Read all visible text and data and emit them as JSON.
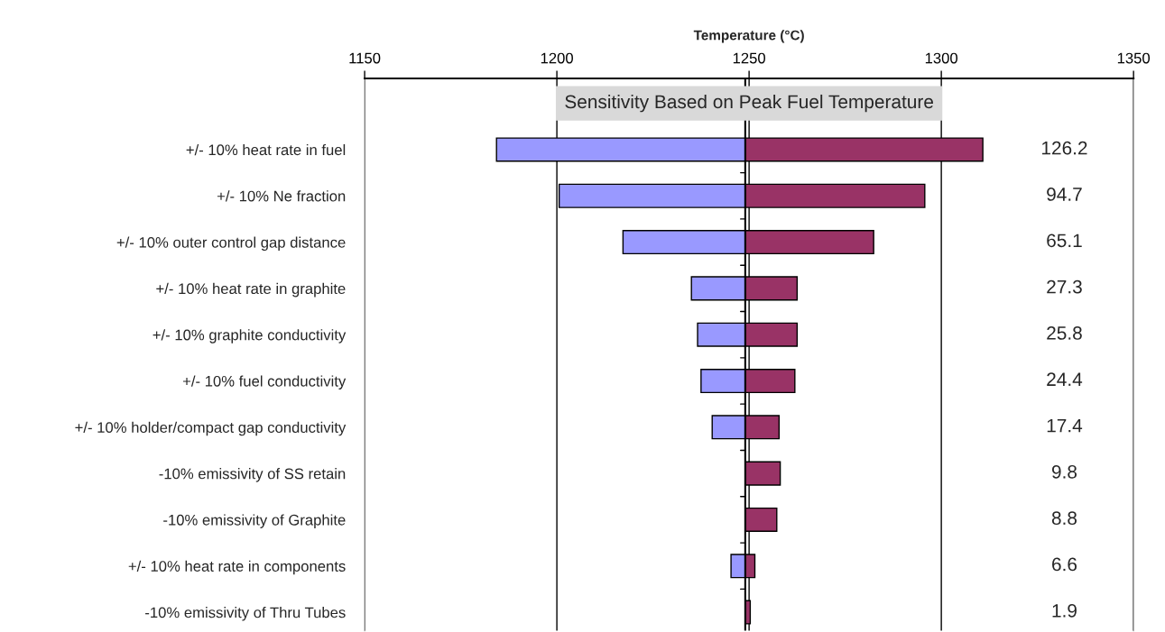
{
  "chart_data": {
    "type": "bar",
    "orientation": "horizontal",
    "title": "Sensitivity Based on Peak Fuel Temperature",
    "xlabel": "Temperature (°C)",
    "categories": [
      "+/- 10% heat rate in fuel",
      "+/- 10% Ne fraction",
      "+/- 10% outer control gap distance",
      "+/- 10% heat rate in graphite",
      "+/- 10% graphite conductivity",
      "+/- 10% fuel conductivity",
      "+/- 10% holder/compact gap conductivity",
      "-10% emissivity of SS retain",
      "-10% emissivity of Graphite",
      "+/- 10% heat rate in components",
      "-10% emissivity of Thru Tubes"
    ],
    "series": [
      {
        "color": "#9999ff",
        "base": [
          1184.3,
          1200.6,
          1217.2,
          1235.0,
          1236.6,
          1237.5,
          1240.4,
          null,
          null,
          1245.3,
          null
        ],
        "values": [
          64.7,
          48.4,
          31.8,
          14.0,
          12.4,
          11.5,
          8.6,
          null,
          null,
          3.7,
          null
        ]
      },
      {
        "color": "#993366",
        "base": [
          1249,
          1249,
          1249,
          1249,
          1249,
          1249,
          1249,
          1249,
          1249,
          1249,
          1249
        ],
        "values": [
          61.8,
          46.7,
          33.4,
          13.5,
          13.5,
          12.9,
          8.8,
          9.1,
          8.2,
          2.5,
          1.3
        ]
      }
    ],
    "xlim": [
      1150,
      1350
    ],
    "xticks": [
      1150,
      1200,
      1250,
      1300,
      1350
    ],
    "grid": "x",
    "ref_lines": [
      {
        "axis": "x",
        "value": 1249,
        "color": "#000000"
      }
    ],
    "annotations": [
      "126.2",
      "94.7",
      "65.1",
      "27.3",
      "25.8",
      "24.4",
      "17.4",
      "9.8",
      "8.8",
      "6.6",
      "1.9"
    ]
  }
}
